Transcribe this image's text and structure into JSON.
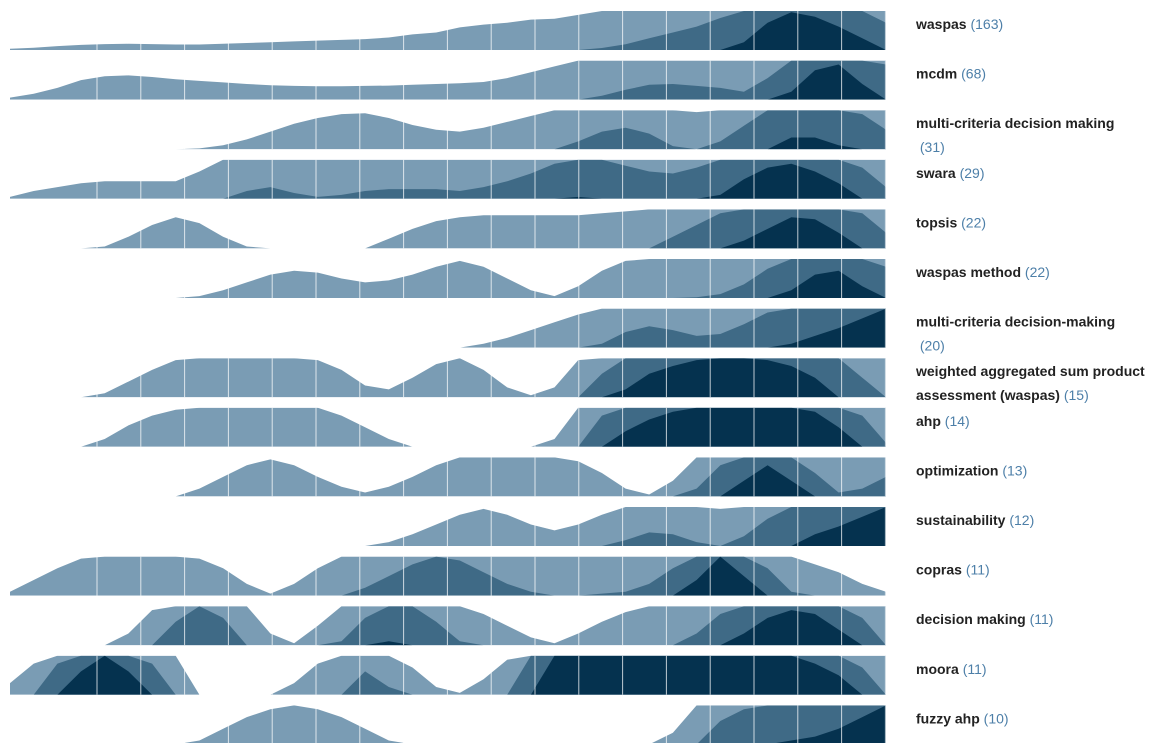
{
  "chart_data": {
    "type": "area",
    "subtype": "horizon",
    "layers": 3,
    "colors": [
      "#7a9cb4",
      "#3f6a86",
      "#05324f"
    ],
    "grid": true,
    "legend": "none",
    "rows": [
      {
        "keyword": "waspas",
        "count": "(163)",
        "values": [
          0.03,
          0.06,
          0.1,
          0.13,
          0.15,
          0.16,
          0.15,
          0.14,
          0.14,
          0.16,
          0.18,
          0.2,
          0.22,
          0.24,
          0.26,
          0.28,
          0.32,
          0.4,
          0.45,
          0.58,
          0.65,
          0.7,
          0.78,
          0.8,
          0.9,
          1.05,
          1.15,
          1.3,
          1.45,
          1.6,
          1.82,
          2.2,
          2.7,
          2.97,
          2.85,
          2.6,
          2.3,
          1.7
        ]
      },
      {
        "keyword": "mcdm",
        "count": "(68)",
        "values": [
          0.05,
          0.15,
          0.3,
          0.5,
          0.6,
          0.62,
          0.58,
          0.52,
          0.48,
          0.44,
          0.4,
          0.37,
          0.35,
          0.34,
          0.34,
          0.35,
          0.36,
          0.38,
          0.4,
          0.42,
          0.45,
          0.55,
          0.7,
          0.85,
          1.0,
          1.1,
          1.25,
          1.38,
          1.4,
          1.35,
          1.3,
          1.2,
          1.55,
          2.2,
          2.75,
          2.9,
          2.4,
          1.9
        ]
      },
      {
        "keyword": "multi-criteria decision making",
        "count": "(31)",
        "values": [
          0,
          0,
          0,
          0,
          0,
          0,
          0,
          0,
          0.02,
          0.1,
          0.25,
          0.45,
          0.65,
          0.8,
          0.9,
          0.92,
          0.8,
          0.62,
          0.5,
          0.45,
          0.55,
          0.7,
          0.85,
          1.0,
          1.2,
          1.45,
          1.55,
          1.4,
          1.08,
          0.95,
          1.2,
          1.6,
          2.0,
          2.3,
          2.3,
          2.1,
          1.9,
          1.5
        ]
      },
      {
        "keyword": "swara",
        "count": "(29)",
        "values": [
          0.05,
          0.2,
          0.3,
          0.4,
          0.45,
          0.45,
          0.45,
          0.45,
          0.7,
          1.0,
          1.2,
          1.3,
          1.15,
          1.05,
          1.1,
          1.2,
          1.25,
          1.25,
          1.25,
          1.2,
          1.3,
          1.45,
          1.65,
          1.9,
          2.05,
          2.0,
          1.85,
          1.7,
          1.65,
          1.8,
          2.1,
          2.5,
          2.8,
          2.9,
          2.7,
          2.4,
          1.8,
          1.3
        ]
      },
      {
        "keyword": "topsis",
        "count": "(22)",
        "values": [
          0,
          0,
          0,
          0,
          0.05,
          0.3,
          0.6,
          0.8,
          0.65,
          0.3,
          0.05,
          0,
          0,
          0,
          0,
          0,
          0.25,
          0.5,
          0.7,
          0.8,
          0.85,
          0.85,
          0.85,
          0.85,
          0.85,
          0.9,
          0.95,
          1.0,
          1.3,
          1.6,
          1.9,
          2.2,
          2.5,
          2.8,
          2.75,
          2.4,
          1.9,
          1.4
        ]
      },
      {
        "keyword": "waspas method",
        "count": "(22)",
        "values": [
          0,
          0,
          0,
          0,
          0,
          0,
          0,
          0,
          0.05,
          0.2,
          0.4,
          0.6,
          0.7,
          0.65,
          0.5,
          0.4,
          0.45,
          0.6,
          0.8,
          0.95,
          0.8,
          0.5,
          0.2,
          0.05,
          0.3,
          0.7,
          0.95,
          1.0,
          1.0,
          1.02,
          1.1,
          1.35,
          1.75,
          2.2,
          2.6,
          2.7,
          2.3,
          1.8
        ]
      },
      {
        "keyword": "multi-criteria decision-making",
        "count": "(20)",
        "values": [
          0,
          0,
          0,
          0,
          0,
          0,
          0,
          0,
          0,
          0,
          0,
          0,
          0,
          0,
          0,
          0,
          0,
          0,
          0,
          0,
          0.1,
          0.25,
          0.45,
          0.65,
          0.85,
          1.1,
          1.4,
          1.55,
          1.45,
          1.3,
          1.35,
          1.6,
          1.9,
          2.1,
          2.3,
          2.5,
          2.75,
          3.0
        ]
      },
      {
        "keyword": "weighted aggregated sum product assessment (waspas)",
        "count": "(15)",
        "values": [
          0,
          0,
          0,
          0,
          0.1,
          0.4,
          0.7,
          0.95,
          1.0,
          1.0,
          1.0,
          1.0,
          1.0,
          0.95,
          0.7,
          0.3,
          0.2,
          0.5,
          0.85,
          1.0,
          0.7,
          0.25,
          0.05,
          0.25,
          0.95,
          1.6,
          2.2,
          2.6,
          2.8,
          2.95,
          3.0,
          3.0,
          2.95,
          2.8,
          2.5,
          2.0,
          1.5,
          1.0
        ]
      },
      {
        "keyword": "ahp",
        "count": "(14)",
        "values": [
          0,
          0,
          0,
          0,
          0.2,
          0.55,
          0.8,
          0.95,
          1.0,
          1.0,
          1.0,
          1.0,
          1.0,
          1.0,
          0.8,
          0.5,
          0.2,
          0,
          0,
          0,
          0,
          0,
          0,
          0.2,
          1.0,
          1.8,
          2.4,
          2.7,
          2.9,
          3.0,
          3.0,
          3.0,
          3.0,
          3.0,
          2.9,
          2.5,
          1.8,
          1.1
        ]
      },
      {
        "keyword": "optimization",
        "count": "(13)",
        "values": [
          0,
          0,
          0,
          0,
          0,
          0,
          0,
          0,
          0.2,
          0.5,
          0.8,
          0.95,
          0.8,
          0.5,
          0.25,
          0.1,
          0.25,
          0.5,
          0.8,
          1.0,
          1.0,
          1.0,
          1.0,
          1.0,
          0.9,
          0.6,
          0.2,
          0.05,
          0.4,
          1.2,
          1.8,
          2.4,
          2.8,
          2.4,
          1.6,
          1.1,
          1.2,
          1.5
        ]
      },
      {
        "keyword": "sustainability",
        "count": "(12)",
        "values": [
          0,
          0,
          0,
          0,
          0,
          0,
          0,
          0,
          0,
          0,
          0,
          0,
          0,
          0,
          0,
          0,
          0.1,
          0.3,
          0.55,
          0.8,
          0.95,
          0.8,
          0.55,
          0.4,
          0.55,
          0.8,
          1.15,
          1.35,
          1.3,
          1.1,
          0.95,
          1.25,
          1.7,
          2.0,
          2.3,
          2.5,
          2.75,
          3.0
        ]
      },
      {
        "keyword": "copras",
        "count": "(11)",
        "values": [
          0.1,
          0.4,
          0.7,
          0.95,
          1.0,
          1.0,
          1.0,
          1.0,
          0.95,
          0.7,
          0.3,
          0.05,
          0.3,
          0.7,
          1.0,
          1.2,
          1.5,
          1.8,
          2.0,
          1.9,
          1.6,
          1.3,
          1.1,
          1.0,
          1.0,
          1.05,
          1.1,
          1.3,
          1.7,
          2.4,
          3.0,
          2.5,
          1.7,
          1.1,
          0.8,
          0.6,
          0.3,
          0.1
        ]
      },
      {
        "keyword": "decision making",
        "count": "(11)",
        "values": [
          0,
          0,
          0,
          0,
          0,
          0.3,
          0.9,
          1.6,
          2.0,
          1.7,
          1.0,
          0.3,
          0.05,
          0.5,
          1.1,
          1.7,
          2.1,
          2.0,
          1.6,
          1.1,
          0.8,
          0.5,
          0.2,
          0.05,
          0.3,
          0.6,
          0.85,
          1.0,
          1.0,
          1.3,
          1.8,
          2.3,
          2.7,
          2.9,
          2.8,
          2.4,
          1.7,
          1.0
        ]
      },
      {
        "keyword": "moora",
        "count": "(11)",
        "values": [
          0.3,
          0.8,
          1.8,
          2.6,
          3.0,
          2.6,
          1.8,
          1.0,
          0,
          0,
          0,
          0,
          0.3,
          0.8,
          1.0,
          1.6,
          1.2,
          0.7,
          0.2,
          0.05,
          0.4,
          0.9,
          2.0,
          3.0,
          3.0,
          3.0,
          3.0,
          3.0,
          3.0,
          3.0,
          3.0,
          3.0,
          3.0,
          3.0,
          2.8,
          2.5,
          1.7,
          1.0
        ]
      },
      {
        "keyword": "fuzzy ahp",
        "count": "(10)",
        "values": [
          0,
          0,
          0,
          0,
          0,
          0,
          0,
          0,
          0.1,
          0.4,
          0.7,
          0.9,
          1.0,
          0.9,
          0.7,
          0.4,
          0.1,
          0,
          0,
          0,
          0,
          0,
          0,
          0,
          0,
          0,
          0,
          0,
          0.3,
          1.0,
          1.6,
          1.9,
          2.0,
          2.1,
          2.2,
          2.4,
          2.7,
          3.0
        ]
      }
    ]
  }
}
